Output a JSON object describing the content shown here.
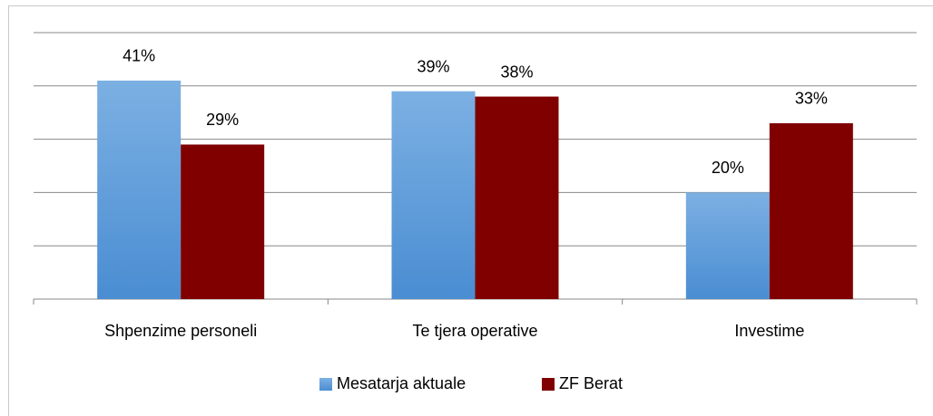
{
  "chart_data": {
    "type": "bar",
    "categories": [
      "Shpenzime personeli",
      "Te tjera operative",
      "Investime"
    ],
    "series": [
      {
        "name": "Mesatarja aktuale",
        "color": "#5b9bd5",
        "values": [
          41,
          39,
          20
        ],
        "value_labels": [
          "41%",
          "39%",
          "20%"
        ]
      },
      {
        "name": "ZF Berat",
        "color": "#800000",
        "values": [
          29,
          38,
          33
        ],
        "value_labels": [
          "29%",
          "38%",
          "33%"
        ]
      }
    ],
    "ylim": [
      0,
      50
    ],
    "yticks": [
      0,
      10,
      20,
      30,
      40,
      50
    ],
    "grid": true,
    "legend": "bottom"
  }
}
